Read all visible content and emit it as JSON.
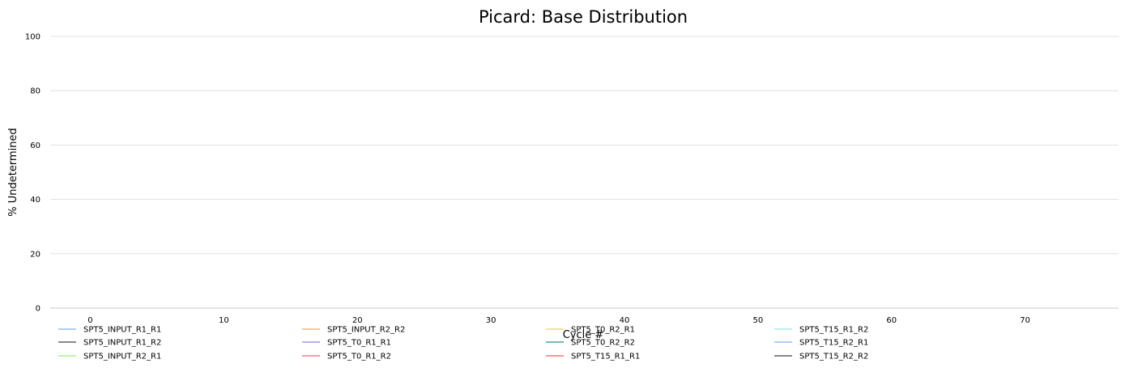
{
  "chart_data": {
    "type": "line",
    "title": "Picard: Base Distribution",
    "xlabel": "Cycle #",
    "ylabel": "% Undetermined",
    "xlim": [
      -3,
      77
    ],
    "ylim": [
      0,
      100
    ],
    "x_ticks": [
      0,
      10,
      20,
      30,
      40,
      50,
      60,
      70
    ],
    "y_ticks": [
      0,
      20,
      40,
      60,
      80,
      100
    ],
    "grid": "horizontal",
    "legend_position": "bottom",
    "series": [
      {
        "name": "SPT5_INPUT_R1_R1",
        "color": "#7cb5ec",
        "x": [],
        "values": []
      },
      {
        "name": "SPT5_INPUT_R1_R2",
        "color": "#434348",
        "x": [],
        "values": []
      },
      {
        "name": "SPT5_INPUT_R2_R1",
        "color": "#90ed7d",
        "x": [],
        "values": []
      },
      {
        "name": "SPT5_INPUT_R2_R2",
        "color": "#f7a35c",
        "x": [],
        "values": []
      },
      {
        "name": "SPT5_T0_R1_R1",
        "color": "#8085e9",
        "x": [],
        "values": []
      },
      {
        "name": "SPT5_T0_R1_R2",
        "color": "#f15c80",
        "x": [],
        "values": []
      },
      {
        "name": "SPT5_T0_R2_R1",
        "color": "#e4d354",
        "x": [],
        "values": []
      },
      {
        "name": "SPT5_T0_R2_R2",
        "color": "#2b908f",
        "x": [],
        "values": []
      },
      {
        "name": "SPT5_T15_R1_R1",
        "color": "#f45b5b",
        "x": [],
        "values": []
      },
      {
        "name": "SPT5_T15_R1_R2",
        "color": "#91e8e1",
        "x": [],
        "values": []
      },
      {
        "name": "SPT5_T15_R2_R1",
        "color": "#7cb5ec",
        "x": [],
        "values": []
      },
      {
        "name": "SPT5_T15_R2_R2",
        "color": "#434348",
        "x": [],
        "values": []
      }
    ]
  }
}
